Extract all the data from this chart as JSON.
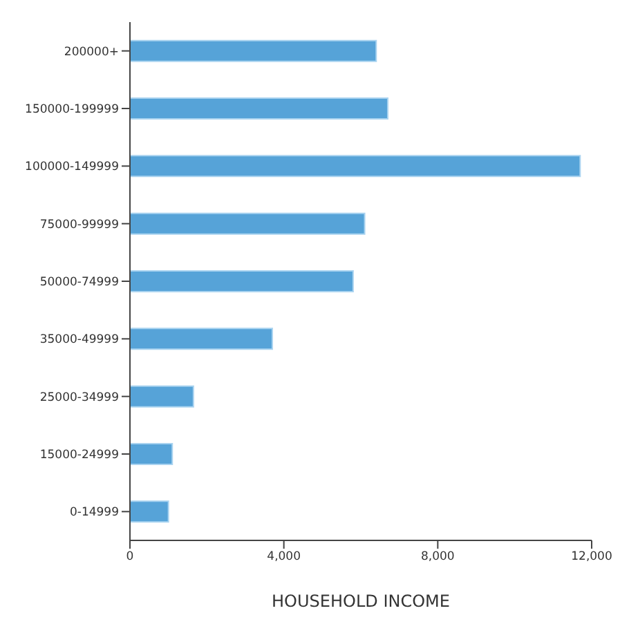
{
  "chart_data": {
    "type": "bar",
    "orientation": "horizontal",
    "xlabel": "HOUSEHOLD INCOME",
    "categories": [
      "200000+",
      "150000-199999",
      "100000-149999",
      "75000-99999",
      "50000-74999",
      "35000-49999",
      "25000-34999",
      "15000-24999",
      "0-14999"
    ],
    "values": [
      6400,
      6700,
      11700,
      6100,
      5800,
      3700,
      1650,
      1100,
      1000
    ],
    "color": "#56a3d8",
    "xlim": [
      0,
      12000
    ],
    "xticks": [
      {
        "value": 0,
        "label": "0"
      },
      {
        "value": 4000,
        "label": "4,000"
      },
      {
        "value": 8000,
        "label": "8,000"
      },
      {
        "value": 12000,
        "label": "12,000"
      }
    ],
    "grid": false,
    "legend": false
  }
}
